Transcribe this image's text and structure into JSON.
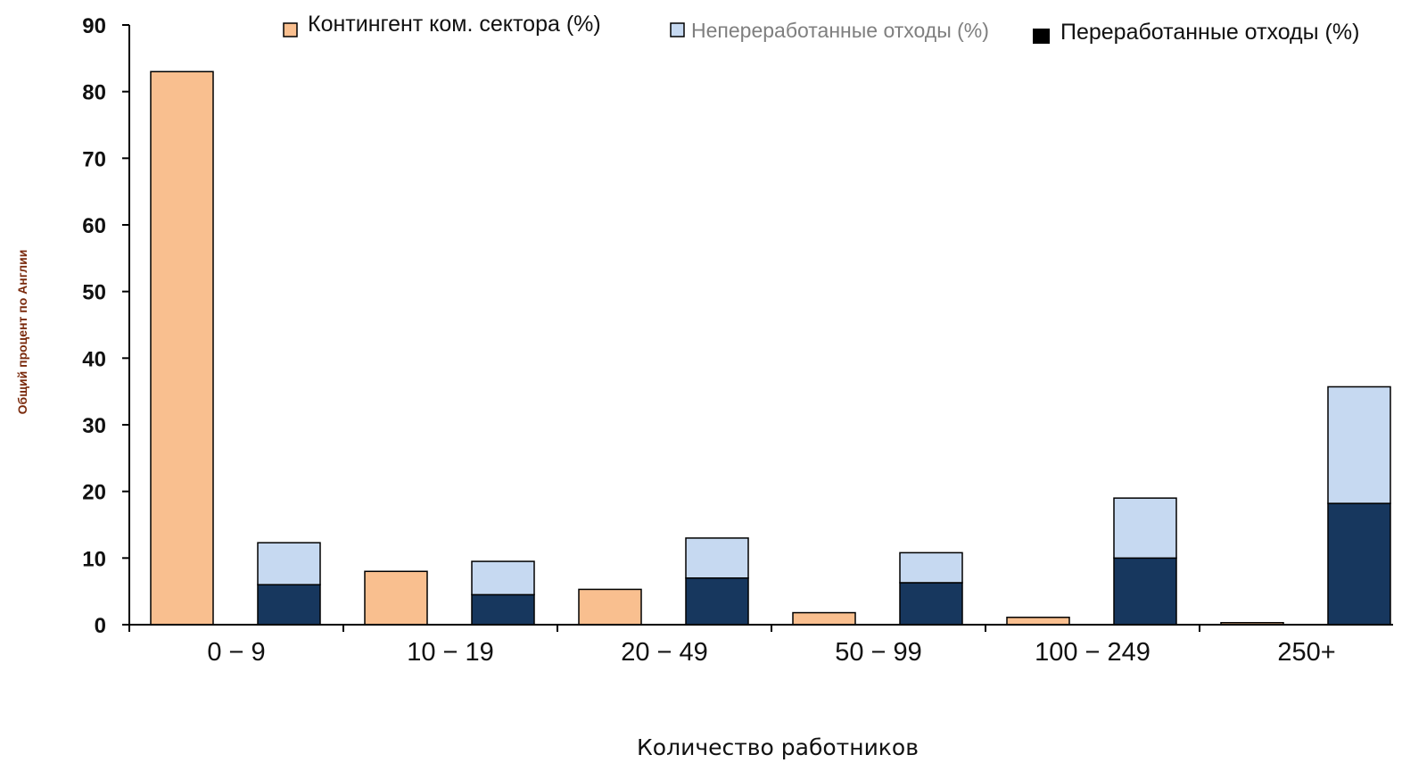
{
  "chart_data": {
    "type": "bar",
    "title": "",
    "xlabel": "Количество работников",
    "ylabel": "Общий процент по Англии",
    "ylim": [
      0,
      90
    ],
    "yticks": [
      "0",
      "10",
      "20",
      "30",
      "40",
      "50",
      "60",
      "70",
      "80",
      "90"
    ],
    "categories": [
      "0 − 9",
      "10 − 19",
      "20 − 49",
      "50 − 99",
      "100 − 249",
      "250+"
    ],
    "legend_position": "top",
    "series": [
      {
        "name": "Контингент ком. сектора (%)",
        "values": [
          83,
          8,
          5.3,
          1.8,
          1.1,
          0.3
        ],
        "color": "#f9bf8f"
      },
      {
        "name": "Непереработанные отходы (%)",
        "values": [
          6.3,
          5,
          6,
          4.5,
          9,
          17.5
        ],
        "color": "#c6d9f1",
        "stacked": true
      },
      {
        "name": "Переработанные отходы (%)",
        "values": [
          6,
          4.5,
          7,
          6.3,
          10,
          18.2
        ],
        "color": "#17375e",
        "stacked_base": true
      }
    ],
    "grid": false
  }
}
